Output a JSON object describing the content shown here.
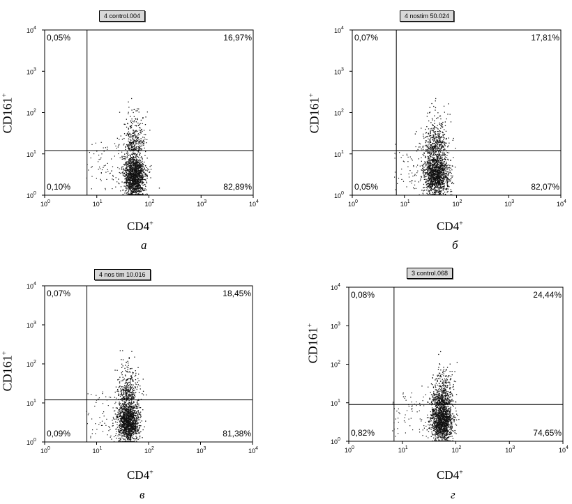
{
  "chart_data": [
    {
      "type": "scatter",
      "letter": "а",
      "tag": "4 control.004",
      "xlabel": "CD4",
      "xlabel_sup": "+",
      "ylabel": "CD161",
      "ylabel_sup": "+",
      "xlim": [
        1,
        10000
      ],
      "ylim": [
        1,
        10000
      ],
      "log_scale": true,
      "tick_base": "10",
      "tick_exponents": [
        "0",
        "1",
        "2",
        "3",
        "4"
      ],
      "quadrant_gate": {
        "x": 6.5,
        "y": 12
      },
      "quadrants": {
        "upper_left": "0,05%",
        "upper_right": "16,97%",
        "lower_left": "0,10%",
        "lower_right": "82,89%"
      },
      "cluster": {
        "x_center": 52,
        "x_spread": 0.1,
        "y_peak": 3,
        "fraction_upper": 0.17
      }
    },
    {
      "type": "scatter",
      "letter": "б",
      "tag": "4 nostim 50.024",
      "xlabel": "CD4",
      "xlabel_sup": "+",
      "ylabel": "CD161",
      "ylabel_sup": "+",
      "xlim": [
        1,
        10000
      ],
      "ylim": [
        1,
        10000
      ],
      "log_scale": true,
      "tick_base": "10",
      "tick_exponents": [
        "0",
        "1",
        "2",
        "3",
        "4"
      ],
      "quadrant_gate": {
        "x": 7,
        "y": 12
      },
      "quadrants": {
        "upper_left": "0,07%",
        "upper_right": "17,81%",
        "lower_left": "0,05%",
        "lower_right": "82,07%"
      },
      "cluster": {
        "x_center": 40,
        "x_spread": 0.12,
        "y_peak": 3.5,
        "fraction_upper": 0.18
      }
    },
    {
      "type": "scatter",
      "letter": "в",
      "tag": "4 nos tim 10.016",
      "xlabel": "CD4",
      "xlabel_sup": "+",
      "ylabel": "CD161",
      "ylabel_sup": "+",
      "xlim": [
        1,
        10000
      ],
      "ylim": [
        1,
        10000
      ],
      "log_scale": true,
      "tick_base": "10",
      "tick_exponents": [
        "0",
        "1",
        "2",
        "3",
        "4"
      ],
      "quadrant_gate": {
        "x": 6.5,
        "y": 12
      },
      "quadrants": {
        "upper_left": "0,07%",
        "upper_right": "18,45%",
        "lower_left": "0,09%",
        "lower_right": "81,38%"
      },
      "cluster": {
        "x_center": 40,
        "x_spread": 0.1,
        "y_peak": 3.5,
        "fraction_upper": 0.18
      }
    },
    {
      "type": "scatter",
      "letter": "г",
      "tag": "3 control.068",
      "xlabel": "CD4",
      "xlabel_sup": "+",
      "ylabel": "CD161",
      "ylabel_sup": "+",
      "xlim": [
        1,
        10000
      ],
      "ylim": [
        1,
        10000
      ],
      "log_scale": true,
      "tick_base": "10",
      "tick_exponents": [
        "0",
        "1",
        "2",
        "3",
        "4"
      ],
      "quadrant_gate": {
        "x": 7,
        "y": 9
      },
      "quadrants": {
        "upper_left": "0,08%",
        "upper_right": "24,44%",
        "lower_left": "0,82%",
        "lower_right": "74,65%"
      },
      "cluster": {
        "x_center": 55,
        "x_spread": 0.1,
        "y_peak": 3.5,
        "fraction_upper": 0.24
      }
    }
  ]
}
